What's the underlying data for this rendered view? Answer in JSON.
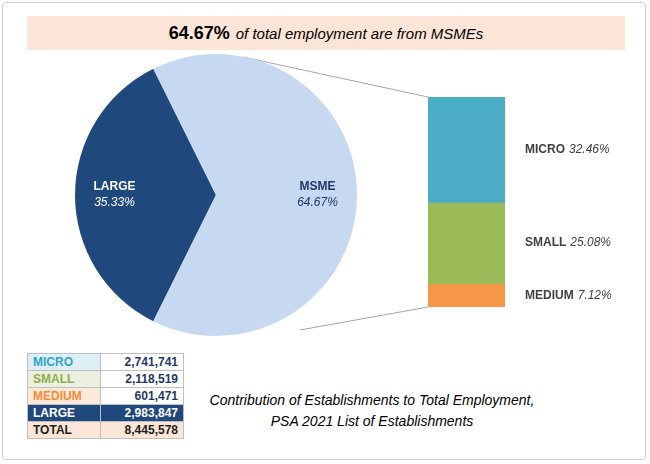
{
  "header": {
    "emphasis": "64.67%",
    "text": "of total employment are from MSMEs"
  },
  "chart_data": [
    {
      "type": "pie",
      "categories": [
        "LARGE",
        "MSME"
      ],
      "values": [
        35.33,
        64.67
      ],
      "value_labels": [
        "35.33%",
        "64.67%"
      ],
      "colors": [
        "#1f497d",
        "#c6d9f1"
      ],
      "data_labels": true
    },
    {
      "type": "bar",
      "stacked": true,
      "categories": [
        null
      ],
      "series": [
        {
          "name": "MICRO",
          "color": "#4bacc6",
          "values": [
            32.46
          ],
          "value_labels": [
            "32.46%"
          ]
        },
        {
          "name": "SMALL",
          "color": "#9bbb59",
          "values": [
            25.08
          ],
          "value_labels": [
            "25.08%"
          ]
        },
        {
          "name": "MEDIUM",
          "color": "#f79646",
          "values": [
            7.12
          ],
          "value_labels": [
            "7.12%"
          ]
        }
      ],
      "ylim": [
        0,
        64.67
      ],
      "tick_labels": false,
      "grid": false,
      "data_labels": true
    }
  ],
  "table": {
    "rows": [
      [
        "MICRO",
        "2,741,741"
      ],
      [
        "SMALL",
        "2,118,519"
      ],
      [
        "MEDIUM",
        "601,471"
      ],
      [
        "LARGE",
        "2,983,847"
      ],
      [
        "TOTAL",
        "8,445,578"
      ]
    ]
  },
  "caption": [
    "Contribution of Establishments to Total Employment,",
    "PSA 2021 List of Establishments"
  ]
}
